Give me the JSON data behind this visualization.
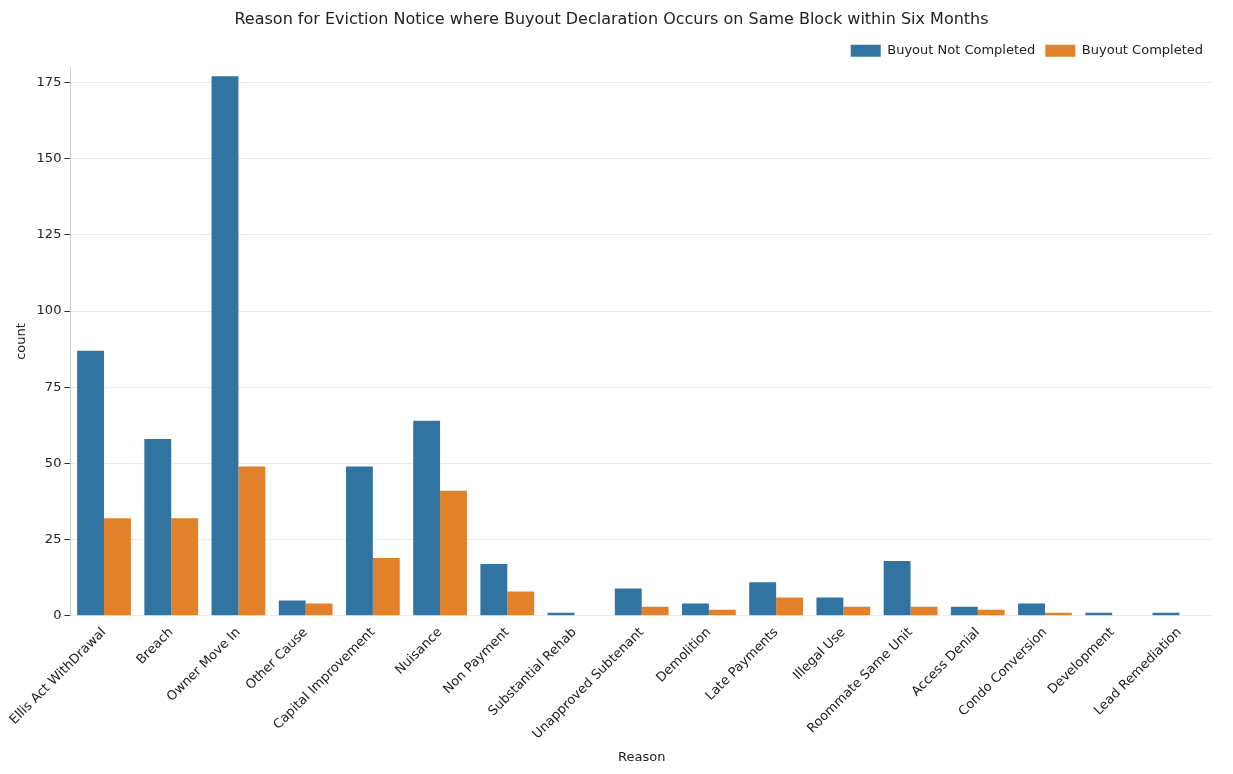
{
  "chart_data": {
    "type": "bar",
    "title": "Reason for Eviction Notice where Buyout Declaration Occurs on Same Block within Six Months",
    "xlabel": "Reason",
    "ylabel": "count",
    "categories": [
      "Ellis Act WithDrawal",
      "Breach",
      "Owner Move In",
      "Other Cause",
      "Capital Improvement",
      "Nuisance",
      "Non Payment",
      "Substantial Rehab",
      "Unapproved Subtenant",
      "Demolition",
      "Late Payments",
      "Illegal Use",
      "Roommate Same Unit",
      "Access Denial",
      "Condo Conversion",
      "Development",
      "Lead Remediation"
    ],
    "series": [
      {
        "name": "Buyout Not Completed",
        "color": "#3274a1",
        "values": [
          87,
          58,
          177,
          5,
          49,
          64,
          17,
          1,
          9,
          4,
          11,
          6,
          18,
          3,
          4,
          1,
          1
        ]
      },
      {
        "name": "Buyout Completed",
        "color": "#e1812c",
        "values": [
          32,
          32,
          49,
          4,
          19,
          41,
          8,
          null,
          3,
          2,
          6,
          3,
          3,
          2,
          1,
          null,
          null
        ]
      }
    ],
    "ylim": [
      0,
      180
    ],
    "yticks": [
      0,
      25,
      50,
      75,
      100,
      125,
      150,
      175
    ],
    "grid": "y",
    "legend": "top right"
  }
}
